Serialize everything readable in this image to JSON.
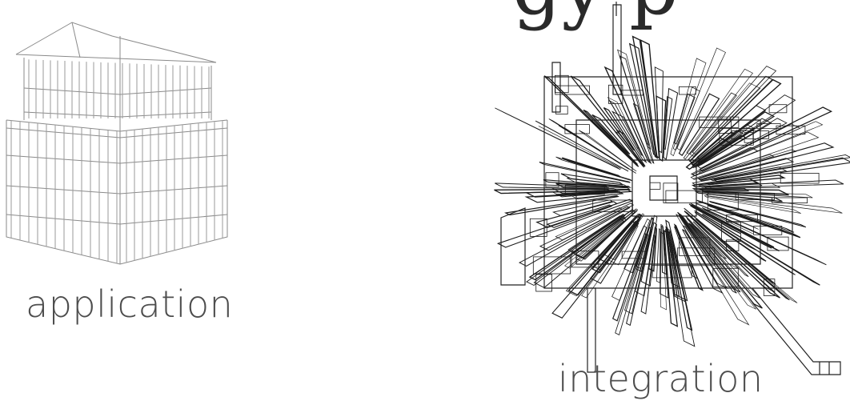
{
  "slide": {
    "partial_heading": "gy p",
    "left_caption": "application",
    "right_caption": "integration"
  }
}
